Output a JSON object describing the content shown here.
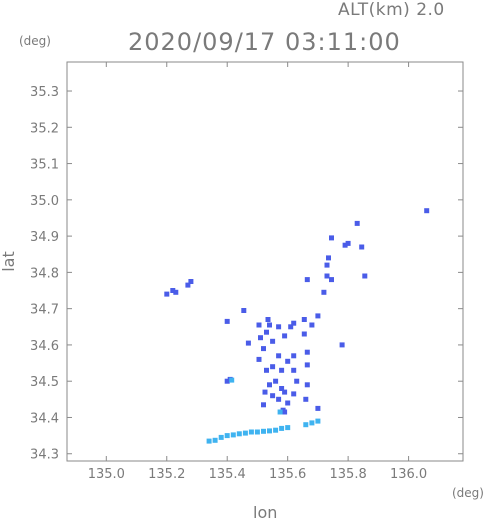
{
  "chart_data": {
    "type": "scatter",
    "title": "2020/09/17 03:11:00",
    "subtitle": "ALT(km) 2.0",
    "xlabel": "lon",
    "ylabel": "lat",
    "x_unit": "(deg)",
    "y_unit": "(deg)",
    "xlim": [
      134.87,
      136.18
    ],
    "ylim": [
      34.28,
      35.38
    ],
    "x_ticks": [
      "135.0",
      "135.2",
      "135.4",
      "135.6",
      "135.8",
      "136.0"
    ],
    "y_ticks": [
      "34.3",
      "34.4",
      "34.5",
      "34.6",
      "34.7",
      "34.8",
      "34.9",
      "35.0",
      "35.1",
      "35.2",
      "35.3"
    ],
    "grid": false,
    "colors": {
      "echo_weak": "#4a5ce8",
      "echo_light": "#3fb3f0",
      "axis": "#7a7a7a"
    },
    "series": [
      {
        "color": "#4a5ce8",
        "points": [
          [
            135.83,
            34.935
          ],
          [
            135.8,
            34.88
          ],
          [
            135.79,
            34.875
          ],
          [
            135.845,
            34.87
          ],
          [
            135.735,
            34.84
          ],
          [
            135.73,
            34.82
          ],
          [
            135.73,
            34.79
          ],
          [
            135.855,
            34.79
          ],
          [
            135.27,
            34.765
          ],
          [
            135.28,
            34.775
          ],
          [
            135.22,
            34.75
          ],
          [
            135.2,
            34.74
          ],
          [
            135.23,
            34.745
          ],
          [
            135.665,
            34.78
          ],
          [
            135.72,
            34.745
          ],
          [
            135.455,
            34.695
          ],
          [
            135.535,
            34.67
          ],
          [
            135.505,
            34.655
          ],
          [
            135.54,
            34.655
          ],
          [
            135.53,
            34.635
          ],
          [
            135.57,
            34.65
          ],
          [
            135.61,
            34.65
          ],
          [
            135.62,
            34.66
          ],
          [
            135.655,
            34.67
          ],
          [
            135.7,
            34.68
          ],
          [
            135.68,
            34.655
          ],
          [
            135.4,
            34.665
          ],
          [
            135.51,
            34.62
          ],
          [
            135.55,
            34.61
          ],
          [
            135.59,
            34.625
          ],
          [
            135.655,
            34.63
          ],
          [
            135.665,
            34.58
          ],
          [
            135.52,
            34.59
          ],
          [
            135.505,
            34.56
          ],
          [
            135.57,
            34.57
          ],
          [
            135.6,
            34.555
          ],
          [
            135.62,
            34.57
          ],
          [
            135.53,
            34.53
          ],
          [
            135.55,
            34.54
          ],
          [
            135.58,
            34.53
          ],
          [
            135.62,
            34.53
          ],
          [
            135.63,
            34.5
          ],
          [
            135.54,
            34.49
          ],
          [
            135.56,
            34.5
          ],
          [
            135.58,
            34.48
          ],
          [
            135.59,
            34.47
          ],
          [
            135.62,
            34.465
          ],
          [
            135.525,
            34.47
          ],
          [
            135.55,
            34.46
          ],
          [
            135.57,
            34.45
          ],
          [
            135.6,
            34.44
          ],
          [
            135.665,
            34.49
          ],
          [
            135.66,
            34.45
          ],
          [
            135.52,
            34.435
          ],
          [
            135.59,
            34.415
          ],
          [
            135.585,
            34.42
          ],
          [
            135.7,
            34.425
          ],
          [
            135.47,
            34.605
          ],
          [
            135.665,
            34.545
          ],
          [
            135.78,
            34.6
          ],
          [
            135.41,
            34.505
          ],
          [
            135.4,
            34.5
          ],
          [
            136.06,
            34.97
          ],
          [
            135.745,
            34.78
          ],
          [
            135.745,
            34.895
          ]
        ]
      },
      {
        "color": "#3fb3f0",
        "points": [
          [
            135.34,
            34.335
          ],
          [
            135.36,
            34.337
          ],
          [
            135.38,
            34.345
          ],
          [
            135.4,
            34.35
          ],
          [
            135.42,
            34.352
          ],
          [
            135.44,
            34.355
          ],
          [
            135.46,
            34.357
          ],
          [
            135.48,
            34.36
          ],
          [
            135.5,
            34.36
          ],
          [
            135.52,
            34.362
          ],
          [
            135.54,
            34.363
          ],
          [
            135.56,
            34.365
          ],
          [
            135.58,
            34.37
          ],
          [
            135.6,
            34.372
          ],
          [
            135.66,
            34.38
          ],
          [
            135.68,
            34.385
          ],
          [
            135.7,
            34.39
          ],
          [
            135.415,
            34.503
          ],
          [
            135.575,
            34.415
          ]
        ]
      }
    ]
  }
}
